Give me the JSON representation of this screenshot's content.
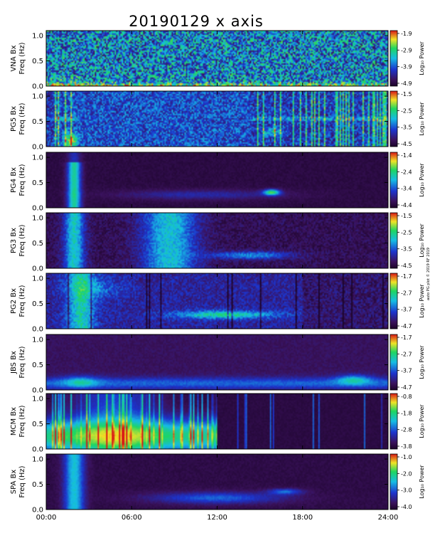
{
  "chart_data": {
    "type": "heatmap",
    "title": "20190129 x axis",
    "xlim": [
      "00:00",
      "24:00"
    ],
    "x_ticks": [
      "00:00",
      "06:00",
      "12:00",
      "18:00",
      "24:00"
    ],
    "colorbar_label": "Log₁₀ Power",
    "colors": {
      "low": "#2a0a48",
      "mid_low": "#1d37c8",
      "mid": "#15b8e0",
      "mid_high": "#1ed86e",
      "high": "#f0e62a",
      "top": "#d81818"
    },
    "panels": [
      {
        "station": "VNA Bx",
        "ylabel": "Freq (Hz)",
        "yticks": [
          "0.0",
          "0.5",
          "1.0"
        ],
        "ylim": [
          0,
          1.1
        ],
        "cbar_ticks": [
          "-1.9",
          "-2.9",
          "-3.9",
          "-4.9"
        ],
        "cbar_range": [
          -4.9,
          -1.9
        ],
        "background": 0.42,
        "noise": 0.38,
        "texture": "grain"
      },
      {
        "station": "PG5 Bx",
        "ylabel": "Freq (Hz)",
        "yticks": [
          "0.0",
          "0.5",
          "1.0"
        ],
        "ylim": [
          0,
          1.1
        ],
        "cbar_ticks": [
          "-1.5",
          "-2.5",
          "-3.5",
          "-4.5"
        ],
        "cbar_range": [
          -4.5,
          -1.5
        ],
        "background": 0.28,
        "noise": 0.2,
        "texture": "grain"
      },
      {
        "station": "PG4 Bx",
        "ylabel": "Freq (Hz)",
        "yticks": [
          "0.0",
          "0.5",
          "1.0"
        ],
        "ylim": [
          0,
          1.1
        ],
        "cbar_ticks": [
          "-1.4",
          "-2.4",
          "-3.4",
          "-4.4"
        ],
        "cbar_range": [
          -4.4,
          -1.4
        ],
        "background": 0.06,
        "noise": 0.05,
        "texture": "smooth"
      },
      {
        "station": "PG3 Bx",
        "ylabel": "Freq (Hz)",
        "yticks": [
          "0.0",
          "0.5",
          "1.0"
        ],
        "ylim": [
          0,
          1.1
        ],
        "cbar_ticks": [
          "-1.5",
          "-2.5",
          "-3.5",
          "-4.5"
        ],
        "cbar_range": [
          -4.5,
          -1.5
        ],
        "background": 0.1,
        "noise": 0.09,
        "texture": "grain"
      },
      {
        "station": "PG2 Bx",
        "ylabel": "Freq (Hz)",
        "yticks": [
          "0.0",
          "0.5",
          "1.0"
        ],
        "ylim": [
          0,
          1.1
        ],
        "cbar_ticks": [
          "-1.7",
          "-2.7",
          "-3.7",
          "-4.7"
        ],
        "cbar_range": [
          -4.7,
          -1.7
        ],
        "background": 0.14,
        "noise": 0.12,
        "texture": "grain"
      },
      {
        "station": "JBS Bx",
        "ylabel": "Freq (Hz)",
        "yticks": [
          "0.0",
          "0.5",
          "1.0"
        ],
        "ylim": [
          0,
          1.1
        ],
        "cbar_ticks": [
          "-1.7",
          "-2.7",
          "-3.7",
          "-4.7"
        ],
        "cbar_range": [
          -4.7,
          -1.7
        ],
        "background": 0.12,
        "noise": 0.06,
        "texture": "smooth"
      },
      {
        "station": "MCM Bx",
        "ylabel": "Freq (Hz)",
        "yticks": [
          "0.0",
          "0.5",
          "1.0"
        ],
        "ylim": [
          0,
          1.1
        ],
        "cbar_ticks": [
          "-0.8",
          "-1.8",
          "-2.8",
          "-3.8"
        ],
        "cbar_range": [
          -3.8,
          -0.8
        ],
        "background": 0.06,
        "noise": 0.04,
        "texture": "streaks"
      },
      {
        "station": "SPA Bx",
        "ylabel": "Freq (Hz)",
        "yticks": [
          "0.0",
          "0.5",
          "1.0"
        ],
        "ylim": [
          0,
          1.1
        ],
        "cbar_ticks": [
          "-1.0",
          "-2.0",
          "-3.0",
          "-4.0"
        ],
        "cbar_range": [
          -4.0,
          -1.0
        ],
        "background": 0.07,
        "noise": 0.05,
        "texture": "smooth"
      }
    ]
  },
  "credit": "auto PG plot © 2019 RF 2019"
}
